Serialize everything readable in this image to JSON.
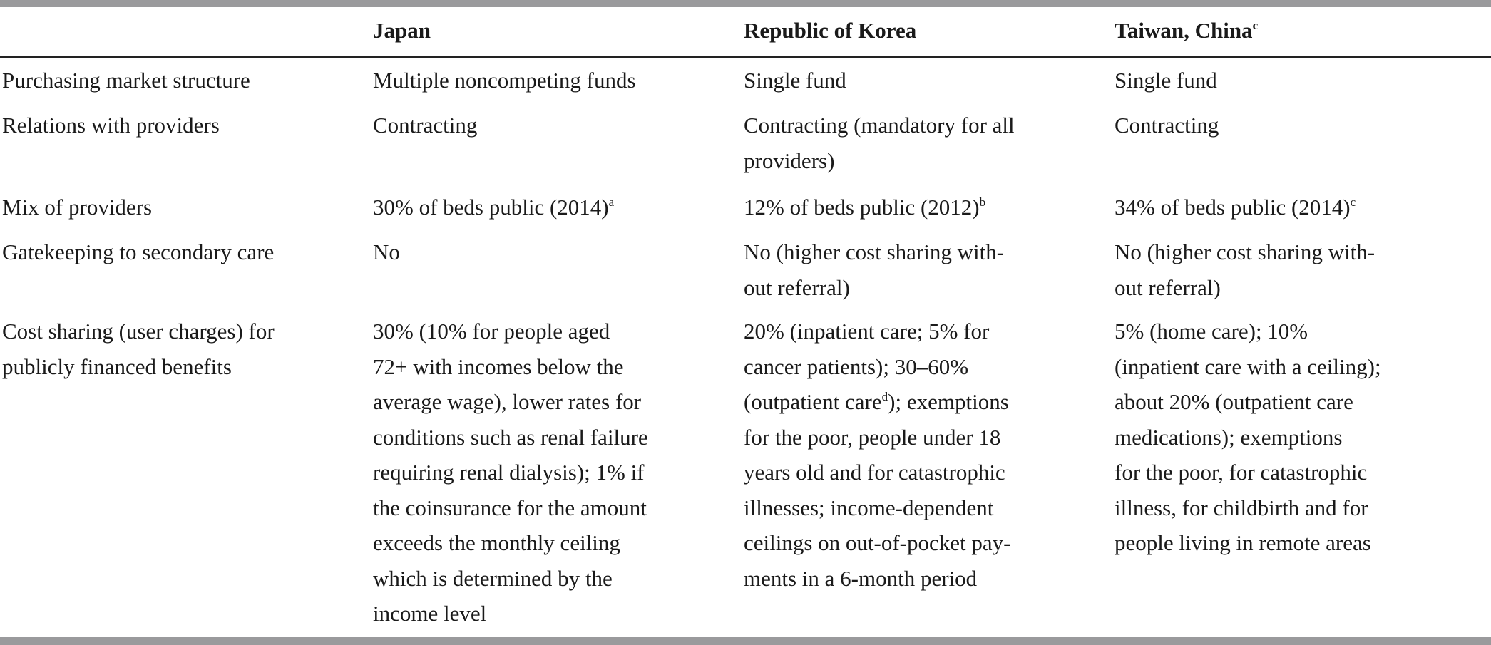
{
  "header": {
    "col1": "Japan",
    "col2": "Republic of Korea",
    "col3": "Taiwan, China",
    "col3_sup": "c"
  },
  "rows": [
    {
      "label": [
        "Purchasing market structure"
      ],
      "japan": [
        "Multiple noncompeting funds"
      ],
      "korea": [
        "Single fund"
      ],
      "taiwan": [
        "Single fund"
      ]
    },
    {
      "label": [
        "Relations with providers"
      ],
      "japan": [
        "Contracting"
      ],
      "korea": [
        "Contracting (mandatory for all",
        "providers)"
      ],
      "taiwan": [
        "Contracting"
      ]
    },
    {
      "label": [
        "Mix of providers"
      ],
      "japan": [
        "30% of beds public (2014)"
      ],
      "japan_sup": "a",
      "korea": [
        "12% of beds public (2012)"
      ],
      "korea_sup": "b",
      "taiwan": [
        "34% of beds public (2014)"
      ],
      "taiwan_sup": "c"
    },
    {
      "label": [
        "Gatekeeping to secondary care"
      ],
      "japan": [
        "No"
      ],
      "korea": [
        "No (higher cost sharing with-",
        "out referral)"
      ],
      "taiwan": [
        "No (higher cost sharing with-",
        "out referral)"
      ]
    },
    {
      "label": [
        "Cost sharing (user charges) for",
        "publicly financed benefits"
      ],
      "japan": [
        "30% (10% for people aged",
        "72+ with incomes below the",
        "average wage), lower rates for",
        "conditions such as renal failure",
        "requiring renal dialysis); 1% if",
        "the coinsurance for the amount",
        "exceeds the monthly ceiling",
        "which is determined by the",
        "income level"
      ],
      "korea": [
        "20% (inpatient care; 5% for",
        "cancer patients); 30–60%",
        "(outpatient care",
        "for the poor, people under 18",
        "years old and for catastrophic",
        "illnesses; income-dependent",
        "ceilings on out-of-pocket pay-",
        "ments in a 6-month period"
      ],
      "korea_line3_sup": "d",
      "korea_line3_tail": "); exemptions",
      "taiwan": [
        "5% (home care); 10%",
        "(inpatient care with a ceiling);",
        "about 20% (outpatient care",
        "medications); exemptions",
        "for the poor, for catastrophic",
        "illness, for childbirth and for",
        "people living in remote areas"
      ]
    }
  ]
}
